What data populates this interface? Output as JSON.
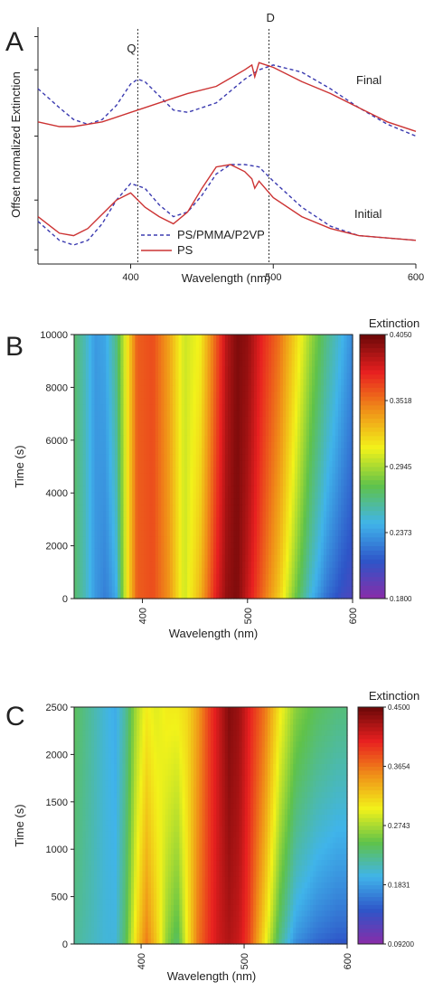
{
  "chart_data": [
    {
      "panel": "A",
      "type": "line",
      "xlabel": "Wavelength (nm)",
      "ylabel": "Offset normalized Extinction",
      "xlim": [
        335,
        600
      ],
      "xticks": [
        400,
        500,
        600
      ],
      "annotations": [
        {
          "text": "Q",
          "x": 405
        },
        {
          "text": "D",
          "x": 497
        },
        {
          "text": "Final"
        },
        {
          "text": "Initial"
        }
      ],
      "legend": {
        "position": "bottom-center",
        "entries": [
          "PS/PMMA/P2VP",
          "PS"
        ]
      },
      "series": [
        {
          "name": "PS/PMMA/P2VP",
          "group": "Final",
          "style": "dashed",
          "color": "#3b3bb0",
          "x": [
            335,
            350,
            360,
            370,
            380,
            390,
            400,
            405,
            410,
            420,
            430,
            440,
            460,
            480,
            490,
            500,
            520,
            540,
            560,
            580,
            600
          ],
          "y": [
            0.74,
            0.66,
            0.61,
            0.59,
            0.61,
            0.67,
            0.76,
            0.78,
            0.77,
            0.71,
            0.65,
            0.64,
            0.68,
            0.78,
            0.82,
            0.84,
            0.81,
            0.74,
            0.66,
            0.59,
            0.54
          ]
        },
        {
          "name": "PS",
          "group": "Final",
          "style": "solid",
          "color": "#cc3333",
          "x": [
            335,
            350,
            360,
            370,
            380,
            390,
            400,
            410,
            420,
            430,
            440,
            460,
            480,
            485,
            487,
            490,
            500,
            520,
            540,
            560,
            580,
            600
          ],
          "y": [
            0.6,
            0.58,
            0.58,
            0.59,
            0.6,
            0.62,
            0.64,
            0.66,
            0.68,
            0.7,
            0.72,
            0.75,
            0.82,
            0.84,
            0.79,
            0.85,
            0.83,
            0.77,
            0.72,
            0.66,
            0.6,
            0.56
          ]
        },
        {
          "name": "PS/PMMA/P2VP",
          "group": "Initial",
          "style": "dashed",
          "color": "#3b3bb0",
          "x": [
            335,
            350,
            360,
            370,
            380,
            390,
            400,
            410,
            420,
            430,
            440,
            450,
            460,
            470,
            480,
            490,
            500,
            520,
            540,
            560,
            580,
            600
          ],
          "y": [
            0.18,
            0.1,
            0.08,
            0.1,
            0.17,
            0.27,
            0.34,
            0.32,
            0.25,
            0.2,
            0.22,
            0.29,
            0.38,
            0.42,
            0.42,
            0.41,
            0.35,
            0.24,
            0.16,
            0.12,
            0.11,
            0.1
          ]
        },
        {
          "name": "PS",
          "group": "Initial",
          "style": "solid",
          "color": "#cc3333",
          "x": [
            335,
            350,
            360,
            370,
            380,
            390,
            400,
            410,
            420,
            430,
            440,
            450,
            460,
            470,
            480,
            485,
            487,
            490,
            500,
            520,
            540,
            560,
            580,
            600
          ],
          "y": [
            0.2,
            0.13,
            0.12,
            0.15,
            0.21,
            0.27,
            0.3,
            0.24,
            0.2,
            0.17,
            0.22,
            0.32,
            0.41,
            0.42,
            0.39,
            0.36,
            0.32,
            0.35,
            0.28,
            0.2,
            0.15,
            0.12,
            0.11,
            0.1
          ]
        }
      ]
    },
    {
      "panel": "B",
      "type": "heatmap",
      "xlabel": "Wavelength (nm)",
      "ylabel": "Time (s)",
      "colorbar_title": "Extinction",
      "xlim": [
        335,
        600
      ],
      "ylim": [
        0,
        10000
      ],
      "xticks": [
        400,
        500,
        600
      ],
      "yticks": [
        0,
        2000,
        4000,
        6000,
        8000,
        10000
      ],
      "colorbar_range": [
        0.18,
        0.405
      ],
      "colorbar_ticks": [
        "0.1800",
        "0.2373",
        "0.2945",
        "0.3518",
        "0.4050"
      ],
      "colorscale": [
        "#8a2ca8",
        "#2e55c8",
        "#40b4ea",
        "#5fc24a",
        "#f2f21a",
        "#f09018",
        "#e82020",
        "#6b0808"
      ],
      "profile": {
        "bottom": {
          "x": [
            335,
            345,
            355,
            365,
            375,
            385,
            395,
            410,
            425,
            440,
            455,
            470,
            480,
            490,
            500,
            515,
            530,
            545,
            560,
            575,
            590,
            600
          ],
          "z": [
            0.27,
            0.255,
            0.235,
            0.225,
            0.24,
            0.31,
            0.355,
            0.36,
            0.34,
            0.3,
            0.33,
            0.375,
            0.395,
            0.4,
            0.38,
            0.35,
            0.32,
            0.28,
            0.245,
            0.22,
            0.205,
            0.2
          ]
        },
        "top": {
          "x": [
            335,
            345,
            355,
            365,
            375,
            385,
            395,
            410,
            425,
            440,
            455,
            470,
            480,
            490,
            500,
            515,
            530,
            545,
            560,
            575,
            590,
            600
          ],
          "z": [
            0.27,
            0.255,
            0.235,
            0.24,
            0.265,
            0.31,
            0.355,
            0.36,
            0.335,
            0.3,
            0.31,
            0.355,
            0.385,
            0.4,
            0.395,
            0.37,
            0.35,
            0.32,
            0.29,
            0.265,
            0.245,
            0.23
          ]
        }
      }
    },
    {
      "panel": "C",
      "type": "heatmap",
      "xlabel": "Wavelength (nm)",
      "ylabel": "Time (s)",
      "colorbar_title": "Extinction",
      "xlim": [
        335,
        600
      ],
      "ylim": [
        0,
        2500
      ],
      "xticks": [
        400,
        500,
        600
      ],
      "yticks": [
        0,
        500,
        1000,
        1500,
        2000,
        2500
      ],
      "colorbar_range": [
        0.092,
        0.45
      ],
      "colorbar_ticks": [
        "0.09200",
        "0.1831",
        "0.2743",
        "0.3654",
        "0.4500"
      ],
      "colorscale": [
        "#8a2ca8",
        "#2e55c8",
        "#40b4ea",
        "#5fc24a",
        "#f2f21a",
        "#f09018",
        "#e82020",
        "#6b0808"
      ],
      "profile": {
        "bottom": {
          "x": [
            335,
            350,
            365,
            375,
            385,
            395,
            405,
            415,
            425,
            435,
            445,
            455,
            465,
            475,
            485,
            495,
            505,
            520,
            535,
            550,
            570,
            590,
            600
          ],
          "z": [
            0.22,
            0.21,
            0.2,
            0.2,
            0.24,
            0.31,
            0.36,
            0.32,
            0.26,
            0.23,
            0.3,
            0.36,
            0.39,
            0.41,
            0.42,
            0.41,
            0.38,
            0.3,
            0.22,
            0.17,
            0.15,
            0.14,
            0.14
          ]
        },
        "top": {
          "x": [
            335,
            350,
            365,
            375,
            385,
            395,
            405,
            415,
            425,
            435,
            445,
            455,
            465,
            475,
            485,
            495,
            505,
            520,
            535,
            550,
            570,
            590,
            600
          ],
          "z": [
            0.24,
            0.22,
            0.2,
            0.19,
            0.22,
            0.27,
            0.3,
            0.29,
            0.3,
            0.3,
            0.31,
            0.34,
            0.38,
            0.41,
            0.44,
            0.43,
            0.4,
            0.36,
            0.3,
            0.26,
            0.24,
            0.23,
            0.23
          ]
        }
      }
    }
  ]
}
